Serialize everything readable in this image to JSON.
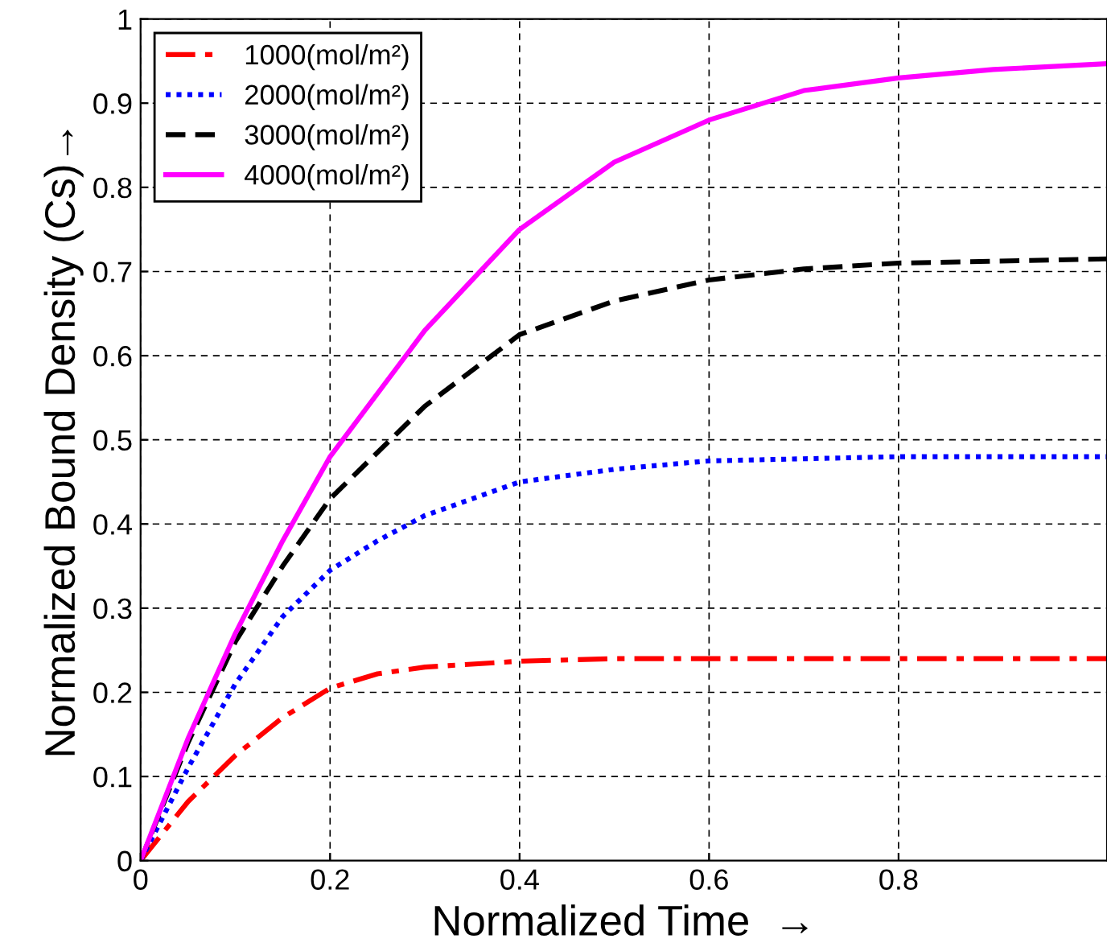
{
  "chart_data": {
    "type": "line",
    "xlabel": "Normalized Time  →",
    "ylabel": "Normalized Bound Density (Cs)→",
    "xlim": [
      0,
      1.02
    ],
    "ylim": [
      0,
      1
    ],
    "xticks": [
      0,
      0.2,
      0.4,
      0.6,
      0.8
    ],
    "yticks": [
      0,
      0.1,
      0.2,
      0.3,
      0.4,
      0.5,
      0.6,
      0.7,
      0.8,
      0.9,
      1
    ],
    "grid": true,
    "legend": "top left",
    "marker": "none",
    "series": [
      {
        "name": "1000(mol/m²)",
        "color": "#ff0000",
        "line_style": "dashdot",
        "x": [
          0,
          0.05,
          0.1,
          0.15,
          0.2,
          0.25,
          0.3,
          0.4,
          0.5,
          0.6,
          0.8,
          1.02
        ],
        "values": [
          0,
          0.07,
          0.125,
          0.17,
          0.205,
          0.222,
          0.23,
          0.237,
          0.24,
          0.24,
          0.24,
          0.24
        ]
      },
      {
        "name": "2000(mol/m²)",
        "color": "#0000ff",
        "line_style": "dotted",
        "x": [
          0,
          0.05,
          0.1,
          0.15,
          0.2,
          0.25,
          0.3,
          0.4,
          0.5,
          0.6,
          0.8,
          1.02
        ],
        "values": [
          0,
          0.11,
          0.21,
          0.29,
          0.345,
          0.38,
          0.41,
          0.45,
          0.465,
          0.475,
          0.48,
          0.48
        ]
      },
      {
        "name": "3000(mol/m²)",
        "color": "#000000",
        "line_style": "dashed",
        "x": [
          0,
          0.05,
          0.1,
          0.15,
          0.2,
          0.3,
          0.4,
          0.5,
          0.6,
          0.7,
          0.8,
          1.02
        ],
        "values": [
          0,
          0.14,
          0.26,
          0.35,
          0.43,
          0.54,
          0.625,
          0.665,
          0.69,
          0.703,
          0.71,
          0.715
        ]
      },
      {
        "name": "4000(mol/m²)",
        "color": "#ff00ff",
        "line_style": "solid",
        "x": [
          0,
          0.05,
          0.1,
          0.15,
          0.2,
          0.3,
          0.4,
          0.5,
          0.6,
          0.7,
          0.8,
          0.9,
          1.02
        ],
        "values": [
          0,
          0.145,
          0.27,
          0.38,
          0.48,
          0.63,
          0.75,
          0.83,
          0.88,
          0.915,
          0.93,
          0.94,
          0.947
        ]
      }
    ]
  }
}
